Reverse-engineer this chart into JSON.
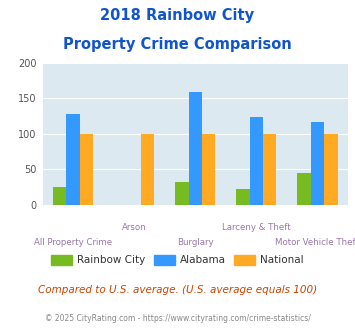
{
  "title_line1": "2018 Rainbow City",
  "title_line2": "Property Crime Comparison",
  "categories": [
    "All Property Crime",
    "Arson",
    "Burglary",
    "Larceny & Theft",
    "Motor Vehicle Theft"
  ],
  "series": {
    "Rainbow City": [
      25,
      0,
      32,
      22,
      44
    ],
    "Alabama": [
      128,
      0,
      158,
      123,
      117
    ],
    "National": [
      100,
      100,
      100,
      100,
      100
    ]
  },
  "colors": {
    "Rainbow City": "#77bb22",
    "Alabama": "#3399ff",
    "National": "#ffaa22"
  },
  "ylim": [
    0,
    200
  ],
  "yticks": [
    0,
    50,
    100,
    150,
    200
  ],
  "plot_bg": "#dce9f0",
  "title_color": "#1155cc",
  "xlabel_color": "#9977aa",
  "footer_text": "Compared to U.S. average. (U.S. average equals 100)",
  "footer_color": "#cc4400",
  "copyright_text": "© 2025 CityRating.com - https://www.cityrating.com/crime-statistics/",
  "copyright_color": "#888888",
  "bar_width": 0.22
}
